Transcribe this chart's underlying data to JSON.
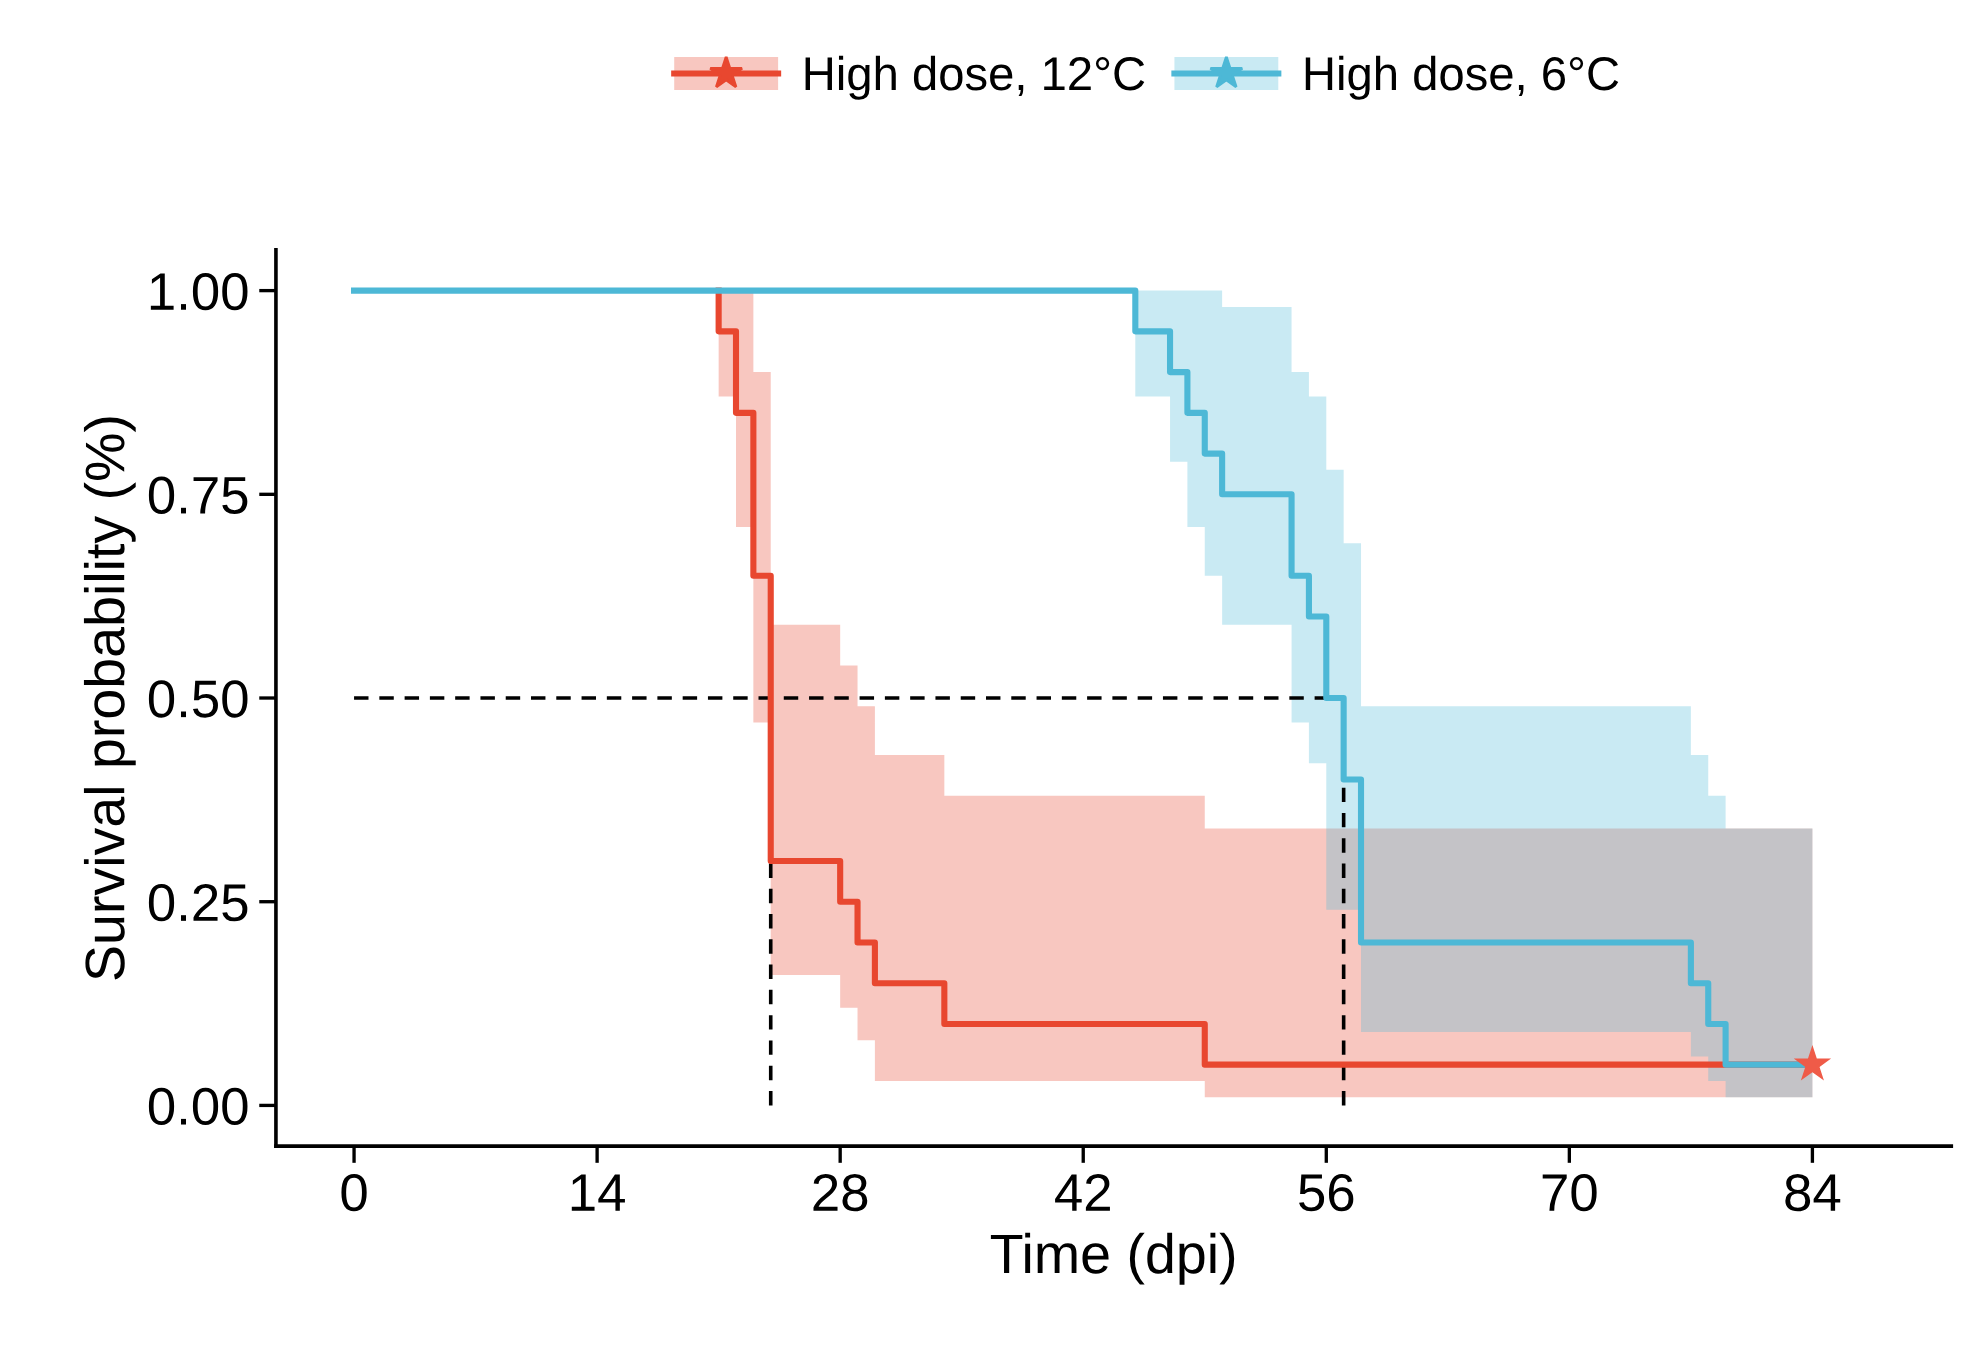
{
  "chart_data": {
    "type": "step",
    "xlabel": "Time (dpi)",
    "ylabel": "Survival probability (%)",
    "xlim": [
      -4.5,
      92
    ],
    "xticks": [
      0,
      14,
      28,
      42,
      56,
      70,
      84
    ],
    "ylim": [
      -0.05,
      1.05
    ],
    "yticks": [
      {
        "value": 0,
        "label": "0.00"
      },
      {
        "value": 0.25,
        "label": "0.25"
      },
      {
        "value": 0.5,
        "label": "0.50"
      },
      {
        "value": 0.75,
        "label": "0.75"
      },
      {
        "value": 1,
        "label": "1.00"
      }
    ],
    "grid": false,
    "legend": "top",
    "series": [
      {
        "name": "High dose, 12°C",
        "color": "#e8472f",
        "x": [
          21,
          21,
          22,
          23,
          24,
          28,
          29,
          30,
          34,
          49,
          84
        ],
        "values": [
          1.0,
          0.95,
          0.85,
          0.65,
          0.3,
          0.25,
          0.2,
          0.15,
          0.1,
          0.05,
          0.05
        ],
        "lower": [
          0.87,
          0.87,
          0.71,
          0.47,
          0.16,
          0.12,
          0.08,
          0.03,
          0.03,
          0.01,
          0.01
        ],
        "upper": [
          1.0,
          1.0,
          1.0,
          0.9,
          0.59,
          0.54,
          0.49,
          0.43,
          0.38,
          0.34,
          0.34
        ]
      },
      {
        "name": "High dose, 6°C",
        "color": "#4db8d6",
        "x": [
          0,
          45,
          47,
          48,
          49,
          50,
          54,
          55,
          56,
          57,
          58,
          77,
          78,
          79,
          84
        ],
        "values": [
          1.0,
          0.95,
          0.9,
          0.85,
          0.8,
          0.75,
          0.65,
          0.6,
          0.5,
          0.4,
          0.2,
          0.15,
          0.1,
          0.05,
          0.05
        ],
        "lower": [
          null,
          0.87,
          0.79,
          0.71,
          0.65,
          0.59,
          0.47,
          0.42,
          0.24,
          0.24,
          0.09,
          0.06,
          0.03,
          0.01,
          0.01
        ],
        "upper": [
          null,
          1.0,
          1.0,
          1.0,
          1.0,
          0.98,
          0.9,
          0.87,
          0.78,
          0.69,
          0.49,
          0.43,
          0.38,
          0.34,
          0.34
        ]
      },
      {
        "type": "scatter",
        "color": "#ef5b48",
        "marker": "star",
        "x": [
          84
        ],
        "values": [
          0.05
        ]
      }
    ],
    "ref_lines": [
      {
        "axis": "y",
        "value": 0.5,
        "line_style": "dashed",
        "color": "#000000"
      },
      {
        "axis": "x",
        "value": 24,
        "line_style": "dashed",
        "color": "#000000"
      },
      {
        "axis": "x",
        "value": 57,
        "line_style": "dashed",
        "color": "#000000"
      }
    ]
  }
}
